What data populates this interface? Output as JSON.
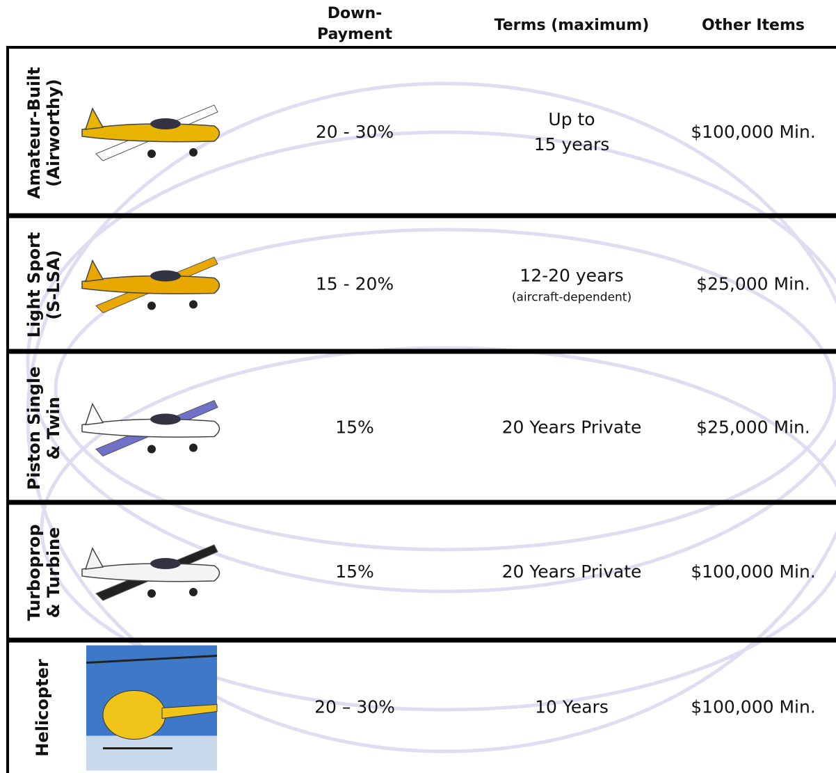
{
  "header": {
    "down_payment": [
      "Down-",
      "Payment"
    ],
    "terms": "Terms (maximum)",
    "other": "Other Items"
  },
  "rows": [
    {
      "label": [
        "Amateur-Built",
        "(Airworthy)"
      ],
      "down_payment": "20 - 30%",
      "terms": [
        "Up to",
        "15 years"
      ],
      "other": "$100,000 Min."
    },
    {
      "label": [
        "Light Sport",
        "(S-LSA)"
      ],
      "down_payment": "15 - 20%",
      "terms": [
        "12-20 years"
      ],
      "terms_note": "(aircraft-dependent)",
      "other": "$25,000 Min."
    },
    {
      "label": [
        "Piston Single",
        "& Twin"
      ],
      "down_payment": "15%",
      "terms": [
        "20 Years Private"
      ],
      "other": "$25,000 Min."
    },
    {
      "label": [
        "Turboprop",
        "& Turbine"
      ],
      "down_payment": "15%",
      "terms": [
        "20 Years Private"
      ],
      "other": "$100,000 Min."
    },
    {
      "label": [
        "Helicopter"
      ],
      "down_payment": "20 – 30%",
      "terms": [
        "10 Years"
      ],
      "other": "$100,000 Min."
    }
  ]
}
